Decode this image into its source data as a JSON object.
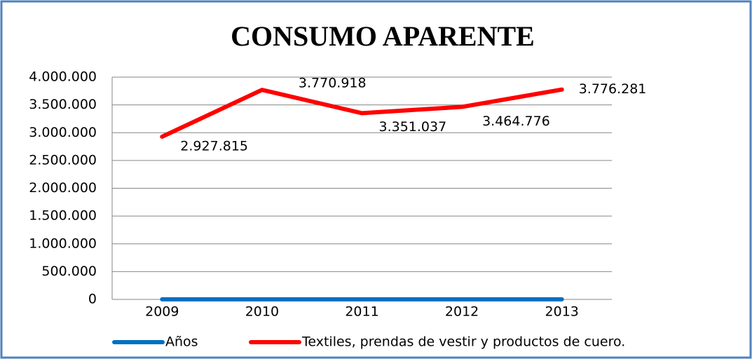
{
  "chart_data": {
    "type": "line",
    "title": "CONSUMO APARENTE",
    "categories": [
      "2009",
      "2010",
      "2011",
      "2012",
      "2013"
    ],
    "series": [
      {
        "name": "Años",
        "color": "#0070c0",
        "values": [
          2009,
          2010,
          2011,
          2012,
          2013
        ]
      },
      {
        "name": "Textiles, prendas de vestir y productos de cuero.",
        "color": "#ff0000",
        "values": [
          2927815,
          3770918,
          3351037,
          3464776,
          3776281
        ],
        "value_labels": [
          "2.927.815",
          "3.770.918",
          "3.351.037",
          "3.464.776",
          "3.776.281"
        ]
      }
    ],
    "ylim": [
      0,
      4000000
    ],
    "yticks": [
      0,
      {
        "value": 500000,
        "label": "500.000"
      },
      {
        "value": 1000000,
        "label": "1.000.000"
      },
      {
        "value": 1500000,
        "label": "1.500.000"
      },
      {
        "value": 2000000,
        "label": "2.000.000"
      },
      {
        "value": 2500000,
        "label": "2.500.000"
      },
      {
        "value": 3000000,
        "label": "3.000.000"
      },
      {
        "value": 3500000,
        "label": "3.500.000"
      },
      {
        "value": 4000000,
        "label": "4.000.000"
      }
    ],
    "grid": true,
    "legend": "bottom"
  }
}
